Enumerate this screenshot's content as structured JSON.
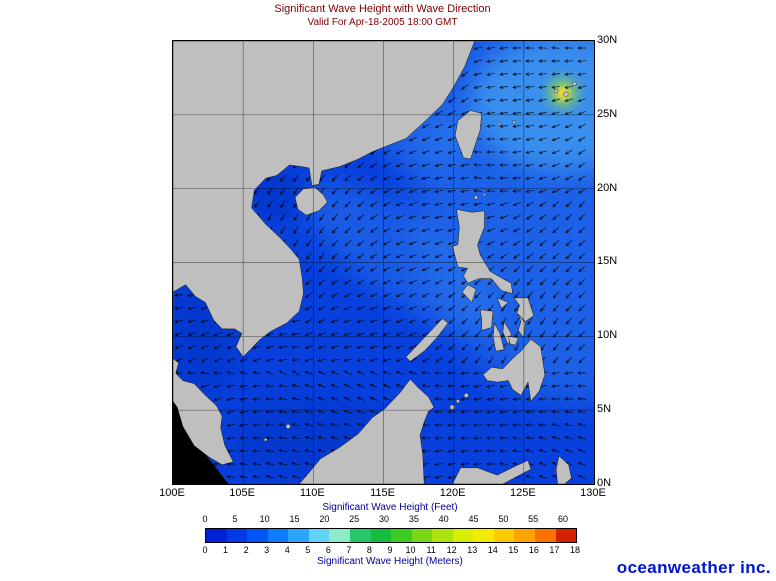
{
  "header": {
    "title": "Significant Wave Height with Wave Direction",
    "subtitle": "Valid For Apr-18-2005 18:00 GMT",
    "title_color": "#7d0000"
  },
  "map": {
    "lon_labels": [
      "100E",
      "105E",
      "110E",
      "115E",
      "120E",
      "125E",
      "130E"
    ],
    "lat_labels": [
      "30N",
      "25N",
      "20N",
      "15N",
      "10N",
      "5N",
      "0N"
    ],
    "grid_interval_deg": 5,
    "sea_color": "#0840dd",
    "sea_light": "#2e7df0",
    "sea_bright": "#49a6f2",
    "sea_dark": "#0431c2",
    "highlight_green": "#8fd84a",
    "highlight_yellow": "#ffd83a",
    "land_color": "#bfbfbf",
    "offgrid_land_color": "#000000",
    "coast_color": "#141414",
    "grid_color": "#000000",
    "arrow_color": "#000000"
  },
  "legend": {
    "feet_title": "Significant Wave Height (Feet)",
    "meters_title": "Significant Wave Height (Meters)",
    "title_color": "#00009a",
    "feet_ticks": [
      "0",
      "5",
      "10",
      "15",
      "20",
      "25",
      "30",
      "35",
      "40",
      "45",
      "50",
      "55",
      "60"
    ],
    "meters_ticks": [
      "0",
      "1",
      "2",
      "3",
      "4",
      "5",
      "6",
      "7",
      "8",
      "9",
      "10",
      "11",
      "12",
      "13",
      "14",
      "15",
      "16",
      "17",
      "18"
    ],
    "colors": [
      "#0021d6",
      "#003ae8",
      "#0056f4",
      "#0d7dfb",
      "#2aa4fc",
      "#5fd3f8",
      "#8debc8",
      "#27c66b",
      "#14bd3e",
      "#3ecb24",
      "#79d916",
      "#abe30d",
      "#d7ec06",
      "#f4ea02",
      "#fccc00",
      "#fda400",
      "#fb7100",
      "#d42200"
    ]
  },
  "logo": {
    "text": "oceanweather inc.",
    "color": "#0013cf"
  },
  "chart_data": {
    "type": "map",
    "title": "Significant Wave Height with Wave Direction",
    "valid": "Apr-18-2005 18:00 GMT",
    "lon_range": [
      "100E",
      "130E"
    ],
    "lat_range": [
      "0N",
      "30N"
    ],
    "grid_interval_deg": 5,
    "feet_scale_ticks": [
      0,
      5,
      10,
      15,
      20,
      25,
      30,
      35,
      40,
      45,
      50,
      55,
      60
    ],
    "meters_scale_ticks": [
      0,
      1,
      2,
      3,
      4,
      5,
      6,
      7,
      8,
      9,
      10,
      11,
      12,
      13,
      14,
      15,
      16,
      17,
      18
    ],
    "units": [
      "Feet",
      "Meters"
    ],
    "depiction": "Ocean areas shaded by significant wave height (mostly 1-3 m blues; brighter greens/yellows near Okinawa), with black wave-direction arrows pointing generally west-southwest"
  }
}
